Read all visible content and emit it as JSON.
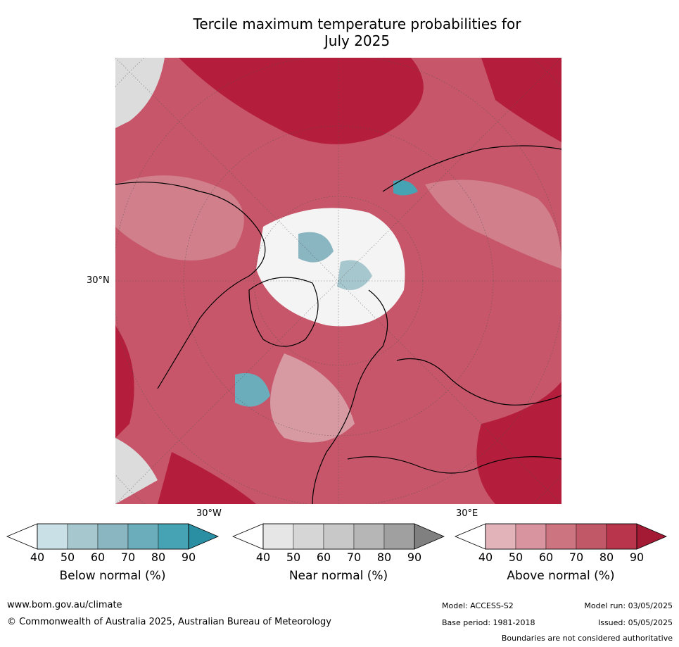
{
  "title": {
    "line1": "Tercile maximum temperature probabilities for",
    "line2": "July 2025"
  },
  "map": {
    "lat_label": "30°N",
    "lon_label_west": "30°W",
    "lon_label_east": "30°E"
  },
  "legends": [
    {
      "label": "Below normal (%)",
      "ticks": [
        "40",
        "50",
        "60",
        "70",
        "80",
        "90"
      ],
      "colors": [
        "#ffffff",
        "#c9e0e6",
        "#a7c7ce",
        "#8ab6c2",
        "#6badba",
        "#46a3b3",
        "#2b8fa4"
      ]
    },
    {
      "label": "Near normal (%)",
      "ticks": [
        "40",
        "50",
        "60",
        "70",
        "80",
        "90"
      ],
      "colors": [
        "#ffffff",
        "#e6e6e6",
        "#d6d6d6",
        "#c8c8c8",
        "#b6b6b6",
        "#a0a0a0",
        "#808080"
      ]
    },
    {
      "label": "Above normal (%)",
      "ticks": [
        "40",
        "50",
        "60",
        "70",
        "80",
        "90"
      ],
      "colors": [
        "#ffffff",
        "#e2b4ba",
        "#d8959f",
        "#cc7480",
        "#c05868",
        "#b8354c",
        "#a41a34"
      ]
    }
  ],
  "footer": {
    "url": "www.bom.gov.au/climate",
    "copyright": "© Commonwealth of Australia 2025, Australian Bureau of Meteorology",
    "model": "Model: ACCESS-S2",
    "base_period": "Base period: 1981-2018",
    "model_run": "Model run: 03/05/2025",
    "issued": "Issued: 05/05/2025",
    "disclaimer": "Boundaries are not considered authoritative"
  }
}
